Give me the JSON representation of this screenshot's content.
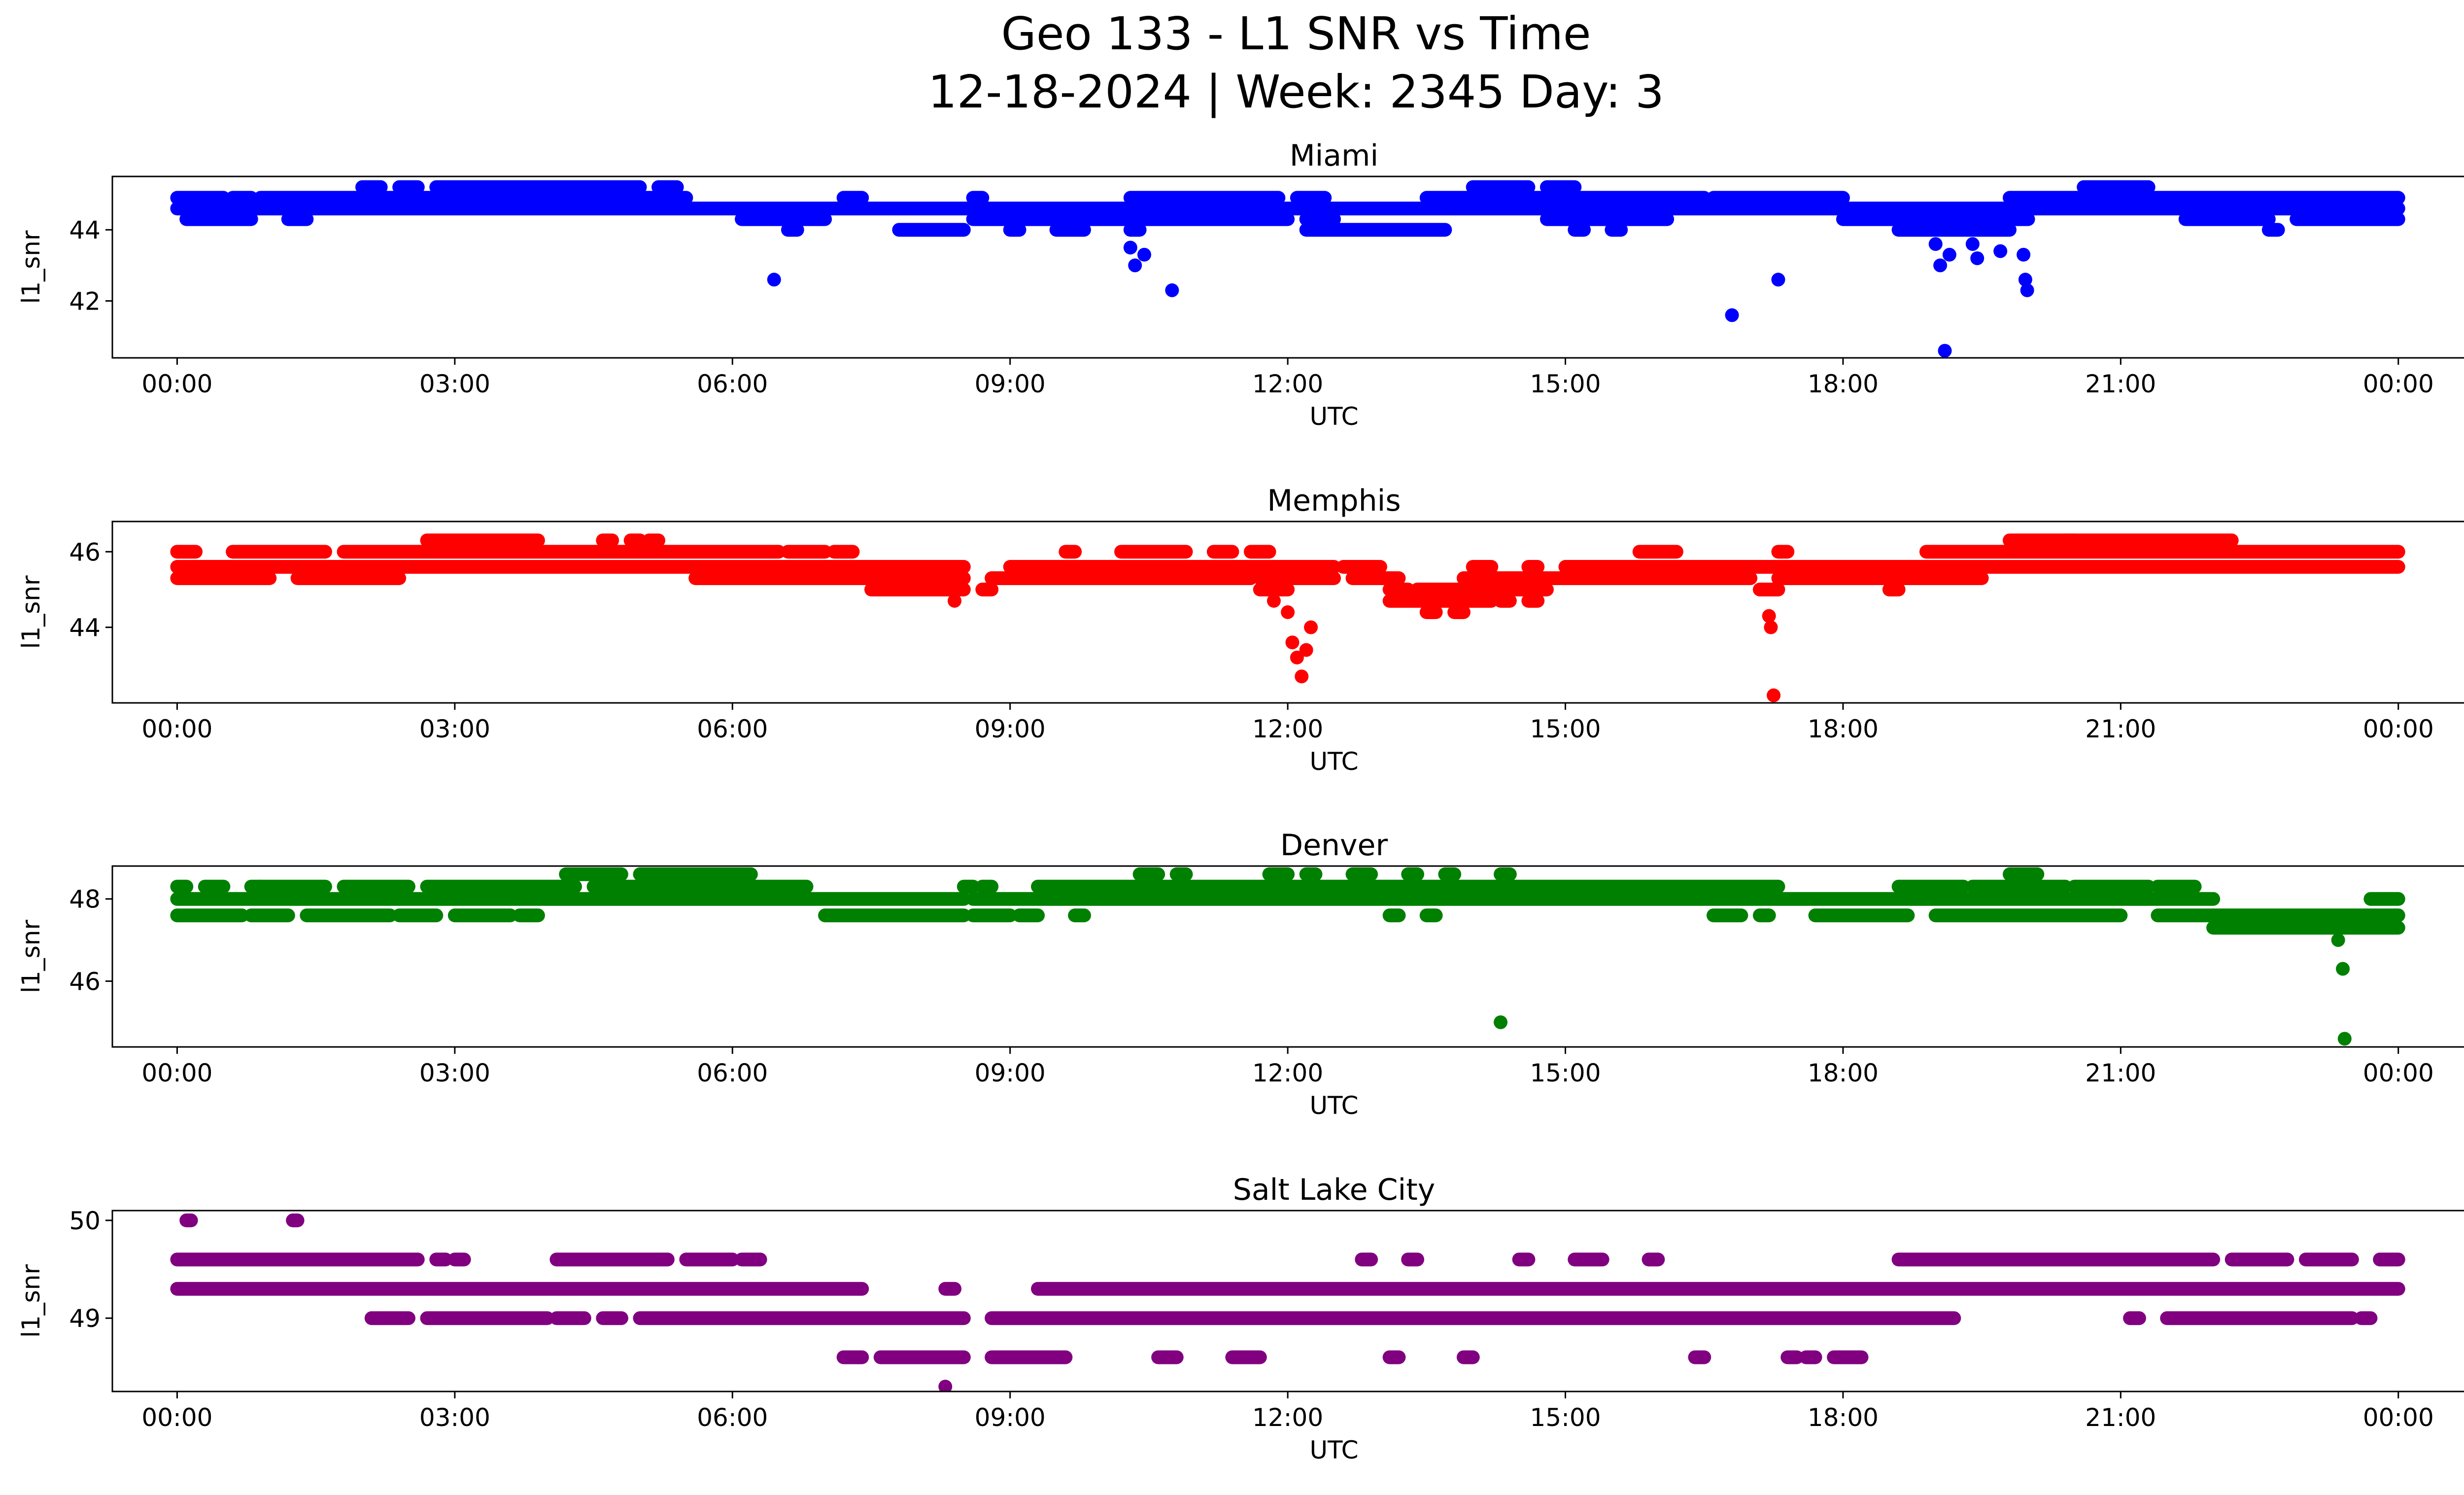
{
  "figure": {
    "title_line1": "Geo 133 - L1 SNR vs Time",
    "title_line2": "12-18-2024 | Week: 2345 Day: 3"
  },
  "chart_data": [
    {
      "type": "scatter",
      "title": "Miami",
      "xlabel": "UTC",
      "ylabel": "l1_snr",
      "color": "#0000ff",
      "xlim": [
        -0.7,
        25.7
      ],
      "ylim": [
        40.4,
        45.5
      ],
      "xticks": [
        0,
        3,
        6,
        9,
        12,
        15,
        18,
        21,
        24
      ],
      "xtick_labels": [
        "00:00",
        "03:00",
        "06:00",
        "09:00",
        "12:00",
        "15:00",
        "18:00",
        "21:00",
        "00:00"
      ],
      "yticks": [
        42,
        44
      ],
      "ytick_labels": [
        "42",
        "44"
      ],
      "bands": [
        {
          "y": 45.2,
          "ranges": [
            [
              2.0,
              2.2
            ],
            [
              2.4,
              2.6
            ],
            [
              2.8,
              5.0
            ],
            [
              5.2,
              5.4
            ],
            [
              14.0,
              14.6
            ],
            [
              14.8,
              15.1
            ],
            [
              20.6,
              21.3
            ]
          ]
        },
        {
          "y": 44.9,
          "ranges": [
            [
              0.0,
              0.5
            ],
            [
              0.6,
              0.8
            ],
            [
              0.9,
              5.5
            ],
            [
              7.2,
              7.4
            ],
            [
              8.6,
              8.7
            ],
            [
              10.3,
              11.9
            ],
            [
              12.1,
              12.4
            ],
            [
              13.5,
              16.5
            ],
            [
              16.6,
              18.0
            ],
            [
              19.8,
              24.0
            ]
          ]
        },
        {
          "y": 44.6,
          "ranges": [
            [
              0.0,
              24.0
            ]
          ]
        },
        {
          "y": 44.3,
          "ranges": [
            [
              0.1,
              0.8
            ],
            [
              1.2,
              1.4
            ],
            [
              6.1,
              7.0
            ],
            [
              8.6,
              12.0
            ],
            [
              12.2,
              12.5
            ],
            [
              14.8,
              16.1
            ],
            [
              18.0,
              20.0
            ],
            [
              21.7,
              22.6
            ],
            [
              22.9,
              24.0
            ]
          ]
        },
        {
          "y": 44.0,
          "ranges": [
            [
              6.6,
              6.7
            ],
            [
              7.8,
              8.5
            ],
            [
              9.0,
              9.1
            ],
            [
              9.5,
              9.8
            ],
            [
              10.3,
              10.4
            ],
            [
              12.2,
              13.7
            ],
            [
              15.1,
              15.2
            ],
            [
              15.5,
              15.6
            ],
            [
              18.6,
              19.8
            ],
            [
              22.6,
              22.7
            ]
          ]
        }
      ],
      "points": [
        {
          "x": 4.0,
          "y": 44.6
        },
        {
          "x": 4.3,
          "y": 44.6
        },
        {
          "x": 4.6,
          "y": 44.6
        },
        {
          "x": 6.45,
          "y": 42.6
        },
        {
          "x": 10.3,
          "y": 43.5
        },
        {
          "x": 10.35,
          "y": 43.0
        },
        {
          "x": 10.45,
          "y": 43.3
        },
        {
          "x": 10.75,
          "y": 42.3
        },
        {
          "x": 16.8,
          "y": 41.6
        },
        {
          "x": 17.3,
          "y": 42.6
        },
        {
          "x": 19.0,
          "y": 43.6
        },
        {
          "x": 19.05,
          "y": 43.0
        },
        {
          "x": 19.1,
          "y": 40.6
        },
        {
          "x": 19.15,
          "y": 43.3
        },
        {
          "x": 19.4,
          "y": 43.6
        },
        {
          "x": 19.45,
          "y": 43.2
        },
        {
          "x": 19.7,
          "y": 43.4
        },
        {
          "x": 19.95,
          "y": 43.3
        },
        {
          "x": 19.97,
          "y": 42.6
        },
        {
          "x": 19.99,
          "y": 42.3
        }
      ]
    },
    {
      "type": "scatter",
      "title": "Memphis",
      "xlabel": "UTC",
      "ylabel": "l1_snr",
      "color": "#ff0000",
      "xlim": [
        -0.7,
        25.7
      ],
      "ylim": [
        42.0,
        46.8
      ],
      "xticks": [
        0,
        3,
        6,
        9,
        12,
        15,
        18,
        21,
        24
      ],
      "xtick_labels": [
        "00:00",
        "03:00",
        "06:00",
        "09:00",
        "12:00",
        "15:00",
        "18:00",
        "21:00",
        "00:00"
      ],
      "yticks": [
        44,
        46
      ],
      "ytick_labels": [
        "44",
        "46"
      ],
      "bands": [
        {
          "y": 46.3,
          "ranges": [
            [
              2.7,
              3.5
            ],
            [
              3.5,
              3.6
            ],
            [
              3.6,
              3.9
            ],
            [
              4.6,
              4.7
            ],
            [
              4.9,
              5.0
            ],
            [
              5.1,
              5.2
            ],
            [
              20.4,
              20.5
            ],
            [
              19.8,
              22.2
            ]
          ]
        },
        {
          "y": 46.0,
          "ranges": [
            [
              0.0,
              0.2
            ],
            [
              0.6,
              1.6
            ],
            [
              1.8,
              6.5
            ],
            [
              6.6,
              7.0
            ],
            [
              7.1,
              7.3
            ],
            [
              9.6,
              9.7
            ],
            [
              10.2,
              10.9
            ],
            [
              11.2,
              11.4
            ],
            [
              11.6,
              11.8
            ],
            [
              15.8,
              16.2
            ],
            [
              17.3,
              17.4
            ],
            [
              18.9,
              24.0
            ]
          ]
        },
        {
          "y": 45.6,
          "ranges": [
            [
              0.0,
              8.5
            ],
            [
              9.0,
              12.5
            ],
            [
              12.6,
              13.0
            ],
            [
              14.0,
              14.2
            ],
            [
              14.6,
              14.7
            ],
            [
              15.0,
              24.0
            ]
          ]
        },
        {
          "y": 45.3,
          "ranges": [
            [
              0.0,
              1.0
            ],
            [
              1.3,
              2.4
            ],
            [
              5.6,
              8.5
            ],
            [
              8.8,
              11.6
            ],
            [
              11.7,
              12.5
            ],
            [
              12.7,
              13.2
            ],
            [
              13.9,
              17.0
            ],
            [
              17.3,
              19.5
            ]
          ]
        },
        {
          "y": 45.0,
          "ranges": [
            [
              7.5,
              8.5
            ],
            [
              8.7,
              8.8
            ],
            [
              11.7,
              12.0
            ],
            [
              13.1,
              13.3
            ],
            [
              13.4,
              14.8
            ],
            [
              17.1,
              17.3
            ],
            [
              18.5,
              18.6
            ]
          ]
        },
        {
          "y": 44.7,
          "ranges": [
            [
              13.1,
              14.2
            ],
            [
              14.3,
              14.4
            ],
            [
              14.6,
              14.7
            ]
          ]
        },
        {
          "y": 44.4,
          "ranges": [
            [
              13.5,
              13.6
            ],
            [
              13.8,
              13.9
            ]
          ]
        }
      ],
      "points": [
        {
          "x": 8.4,
          "y": 44.7
        },
        {
          "x": 11.85,
          "y": 44.7
        },
        {
          "x": 12.0,
          "y": 44.4
        },
        {
          "x": 12.05,
          "y": 43.6
        },
        {
          "x": 12.1,
          "y": 43.2
        },
        {
          "x": 12.15,
          "y": 42.7
        },
        {
          "x": 12.2,
          "y": 43.4
        },
        {
          "x": 12.25,
          "y": 44.0
        },
        {
          "x": 17.2,
          "y": 44.3
        },
        {
          "x": 17.22,
          "y": 44.0
        },
        {
          "x": 17.25,
          "y": 42.2
        }
      ]
    },
    {
      "type": "scatter",
      "title": "Denver",
      "xlabel": "UTC",
      "ylabel": "l1_snr",
      "color": "#008000",
      "xlim": [
        -0.7,
        25.7
      ],
      "ylim": [
        44.4,
        48.8
      ],
      "xticks": [
        0,
        3,
        6,
        9,
        12,
        15,
        18,
        21,
        24
      ],
      "xtick_labels": [
        "00:00",
        "03:00",
        "06:00",
        "09:00",
        "12:00",
        "15:00",
        "18:00",
        "21:00",
        "00:00"
      ],
      "yticks": [
        46,
        48
      ],
      "ytick_labels": [
        "46",
        "48"
      ],
      "bands": [
        {
          "y": 48.6,
          "ranges": [
            [
              4.2,
              4.8
            ],
            [
              5.0,
              6.2
            ],
            [
              10.4,
              10.6
            ],
            [
              10.8,
              10.9
            ],
            [
              11.8,
              12.0
            ],
            [
              12.2,
              12.3
            ],
            [
              12.7,
              12.9
            ],
            [
              13.3,
              13.4
            ],
            [
              13.7,
              13.8
            ],
            [
              14.3,
              14.4
            ],
            [
              19.8,
              20.1
            ]
          ]
        },
        {
          "y": 48.3,
          "ranges": [
            [
              0.0,
              0.1
            ],
            [
              0.3,
              0.5
            ],
            [
              0.8,
              0.9
            ],
            [
              0.9,
              1.6
            ],
            [
              1.8,
              2.5
            ],
            [
              2.7,
              4.3
            ],
            [
              4.5,
              6.8
            ],
            [
              8.5,
              8.6
            ],
            [
              8.7,
              8.8
            ],
            [
              9.3,
              17.3
            ],
            [
              18.6,
              19.3
            ],
            [
              19.4,
              20.4
            ],
            [
              20.5,
              21.3
            ],
            [
              21.4,
              21.8
            ]
          ]
        },
        {
          "y": 48.0,
          "ranges": [
            [
              0.0,
              8.5
            ],
            [
              8.6,
              22.0
            ],
            [
              23.7,
              24.0
            ]
          ]
        },
        {
          "y": 47.6,
          "ranges": [
            [
              0.0,
              0.7
            ],
            [
              0.8,
              1.2
            ],
            [
              1.4,
              2.3
            ],
            [
              2.4,
              2.8
            ],
            [
              3.0,
              3.6
            ],
            [
              3.7,
              3.9
            ],
            [
              7.0,
              8.5
            ],
            [
              8.6,
              9.0
            ],
            [
              9.1,
              9.3
            ],
            [
              9.7,
              9.8
            ],
            [
              13.1,
              13.2
            ],
            [
              13.5,
              13.6
            ],
            [
              16.6,
              16.9
            ],
            [
              17.1,
              17.2
            ],
            [
              17.7,
              18.7
            ],
            [
              19.0,
              21.0
            ],
            [
              21.4,
              22.0
            ],
            [
              22.0,
              24.0
            ]
          ]
        },
        {
          "y": 47.3,
          "ranges": [
            [
              22.0,
              24.0
            ]
          ]
        }
      ],
      "points": [
        {
          "x": 14.3,
          "y": 45.0
        },
        {
          "x": 23.35,
          "y": 47.0
        },
        {
          "x": 23.4,
          "y": 46.3
        },
        {
          "x": 23.42,
          "y": 44.6
        }
      ]
    },
    {
      "type": "scatter",
      "title": "Salt Lake City",
      "xlabel": "UTC",
      "ylabel": "l1_snr",
      "color": "#800080",
      "xlim": [
        -0.7,
        25.7
      ],
      "ylim": [
        48.25,
        50.1
      ],
      "xticks": [
        0,
        3,
        6,
        9,
        12,
        15,
        18,
        21,
        24
      ],
      "xtick_labels": [
        "00:00",
        "03:00",
        "06:00",
        "09:00",
        "12:00",
        "15:00",
        "18:00",
        "21:00",
        "00:00"
      ],
      "yticks": [
        49,
        50
      ],
      "ytick_labels": [
        "49",
        "50"
      ],
      "bands": [
        {
          "y": 50.0,
          "ranges": [
            [
              0.1,
              0.15
            ],
            [
              1.25,
              1.3
            ]
          ]
        },
        {
          "y": 49.6,
          "ranges": [
            [
              0.0,
              2.6
            ],
            [
              2.8,
              2.9
            ],
            [
              3.0,
              3.1
            ],
            [
              4.1,
              5.3
            ],
            [
              5.5,
              6.0
            ],
            [
              6.1,
              6.3
            ],
            [
              12.8,
              12.9
            ],
            [
              13.3,
              13.4
            ],
            [
              14.5,
              14.6
            ],
            [
              15.1,
              15.4
            ],
            [
              15.9,
              16.0
            ],
            [
              18.6,
              22.0
            ],
            [
              22.2,
              22.8
            ],
            [
              23.0,
              23.5
            ],
            [
              23.8,
              24.0
            ]
          ]
        },
        {
          "y": 49.3,
          "ranges": [
            [
              0.0,
              7.4
            ],
            [
              8.3,
              8.4
            ],
            [
              9.3,
              24.0
            ]
          ]
        },
        {
          "y": 49.0,
          "ranges": [
            [
              2.1,
              2.5
            ],
            [
              2.7,
              4.0
            ],
            [
              4.1,
              4.4
            ],
            [
              4.6,
              4.8
            ],
            [
              5.0,
              8.5
            ],
            [
              8.8,
              19.2
            ],
            [
              21.1,
              21.2
            ],
            [
              21.5,
              23.5
            ],
            [
              23.6,
              23.7
            ]
          ]
        },
        {
          "y": 48.6,
          "ranges": [
            [
              7.2,
              7.4
            ],
            [
              7.6,
              8.5
            ],
            [
              8.8,
              9.6
            ],
            [
              10.6,
              10.8
            ],
            [
              11.4,
              11.7
            ],
            [
              13.1,
              13.2
            ],
            [
              13.9,
              14.0
            ],
            [
              16.4,
              16.5
            ],
            [
              17.4,
              17.5
            ],
            [
              17.6,
              17.7
            ],
            [
              17.9,
              18.2
            ]
          ]
        }
      ],
      "points": [
        {
          "x": 8.3,
          "y": 48.3
        }
      ]
    }
  ]
}
